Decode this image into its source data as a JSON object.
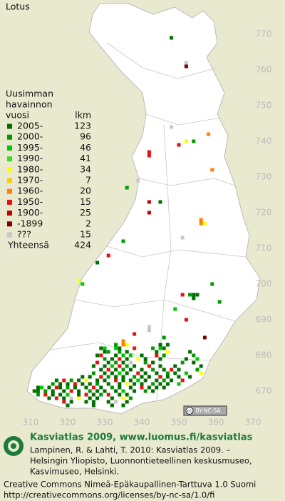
{
  "title": "Lotus",
  "legend": {
    "heading": [
      "Uusimman",
      "havainnon",
      "vuosi"
    ],
    "count_header": "lkm",
    "items": [
      {
        "label": "2005-",
        "count": 123,
        "color": "#006e00"
      },
      {
        "label": "2000-",
        "count": 96,
        "color": "#009a00"
      },
      {
        "label": "1995-",
        "count": 46,
        "color": "#00c800"
      },
      {
        "label": "1990-",
        "count": 41,
        "color": "#33e21a"
      },
      {
        "label": "1980-",
        "count": 34,
        "color": "#ffff00"
      },
      {
        "label": "1970-",
        "count": 7,
        "color": "#ffcc00"
      },
      {
        "label": "1960-",
        "count": 20,
        "color": "#ff8000"
      },
      {
        "label": "1950-",
        "count": 15,
        "color": "#e81010"
      },
      {
        "label": "1900-",
        "count": 25,
        "color": "#c00000"
      },
      {
        "label": "-1899",
        "count": 2,
        "color": "#800000"
      },
      {
        "label": "???",
        "count": 15,
        "color": "#c8c8c8"
      }
    ],
    "total_label": "Yhteensä",
    "total": 424
  },
  "axes": {
    "x_labels": [
      310,
      320,
      330,
      340,
      350,
      360,
      370
    ],
    "y_labels": [
      770,
      760,
      750,
      740,
      730,
      720,
      710,
      700,
      690,
      680,
      670
    ]
  },
  "squares": [
    [
      348,
      769,
      0
    ],
    [
      352,
      762,
      10
    ],
    [
      352,
      761,
      9
    ],
    [
      348,
      744,
      10
    ],
    [
      358,
      742,
      6
    ],
    [
      342,
      737,
      7
    ],
    [
      342,
      736,
      7
    ],
    [
      350,
      739,
      7
    ],
    [
      352,
      740,
      4
    ],
    [
      354,
      740,
      1
    ],
    [
      359,
      732,
      6
    ],
    [
      345,
      723,
      0
    ],
    [
      342,
      723,
      8
    ],
    [
      342,
      720,
      8
    ],
    [
      339,
      729,
      10
    ],
    [
      336,
      727,
      1
    ],
    [
      356,
      718,
      6
    ],
    [
      356,
      717,
      6
    ],
    [
      357,
      717,
      4
    ],
    [
      351,
      713,
      10
    ],
    [
      335,
      712,
      1
    ],
    [
      331,
      708,
      7
    ],
    [
      328,
      706,
      0
    ],
    [
      323,
      701,
      4
    ],
    [
      324,
      700,
      2
    ],
    [
      351,
      697,
      7
    ],
    [
      353,
      697,
      1
    ],
    [
      354,
      697,
      0
    ],
    [
      355,
      697,
      0
    ],
    [
      354,
      696,
      0
    ],
    [
      361,
      695,
      1
    ],
    [
      359,
      700,
      1
    ],
    [
      349,
      693,
      2
    ],
    [
      352,
      690,
      7
    ],
    [
      342,
      688,
      10
    ],
    [
      342,
      687,
      10
    ],
    [
      346,
      685,
      1
    ],
    [
      357,
      685,
      9
    ],
    [
      338,
      686,
      7
    ],
    [
      335,
      684,
      6
    ],
    [
      333,
      683,
      1
    ],
    [
      335,
      683,
      6
    ],
    [
      336,
      683,
      4
    ],
    [
      345,
      683,
      0
    ],
    [
      347,
      683,
      0
    ],
    [
      329,
      682,
      0
    ],
    [
      330,
      682,
      2
    ],
    [
      333,
      682,
      2
    ],
    [
      334,
      682,
      0
    ],
    [
      338,
      682,
      7
    ],
    [
      343,
      682,
      1
    ],
    [
      345,
      682,
      2
    ],
    [
      346,
      682,
      0
    ],
    [
      330,
      681,
      0
    ],
    [
      331,
      681,
      1
    ],
    [
      334,
      681,
      1
    ],
    [
      336,
      681,
      0
    ],
    [
      344,
      681,
      0
    ],
    [
      347,
      681,
      4
    ],
    [
      353,
      681,
      0
    ],
    [
      328,
      680,
      0
    ],
    [
      329,
      680,
      7
    ],
    [
      333,
      680,
      0
    ],
    [
      335,
      680,
      2
    ],
    [
      337,
      680,
      2
    ],
    [
      340,
      680,
      0
    ],
    [
      344,
      680,
      7
    ],
    [
      346,
      680,
      1
    ],
    [
      354,
      680,
      1
    ],
    [
      330,
      679,
      1
    ],
    [
      332,
      679,
      0
    ],
    [
      334,
      679,
      7
    ],
    [
      336,
      679,
      0
    ],
    [
      339,
      679,
      4
    ],
    [
      341,
      679,
      0
    ],
    [
      345,
      679,
      0
    ],
    [
      352,
      679,
      0
    ],
    [
      355,
      679,
      2
    ],
    [
      328,
      678,
      7
    ],
    [
      331,
      678,
      0
    ],
    [
      333,
      678,
      1
    ],
    [
      335,
      678,
      0
    ],
    [
      337,
      678,
      10
    ],
    [
      341,
      678,
      1
    ],
    [
      343,
      678,
      0
    ],
    [
      351,
      678,
      1
    ],
    [
      354,
      678,
      0
    ],
    [
      327,
      677,
      0
    ],
    [
      330,
      677,
      0
    ],
    [
      332,
      677,
      2
    ],
    [
      334,
      677,
      7
    ],
    [
      336,
      677,
      1
    ],
    [
      338,
      677,
      0
    ],
    [
      342,
      677,
      7
    ],
    [
      345,
      677,
      0
    ],
    [
      349,
      677,
      0
    ],
    [
      356,
      677,
      0
    ],
    [
      329,
      676,
      0
    ],
    [
      331,
      676,
      7
    ],
    [
      333,
      676,
      0
    ],
    [
      335,
      676,
      1
    ],
    [
      337,
      676,
      0
    ],
    [
      340,
      676,
      0
    ],
    [
      343,
      676,
      1
    ],
    [
      346,
      676,
      0
    ],
    [
      348,
      676,
      7
    ],
    [
      350,
      676,
      0
    ],
    [
      355,
      676,
      1
    ],
    [
      327,
      675,
      1
    ],
    [
      330,
      675,
      0
    ],
    [
      332,
      675,
      0
    ],
    [
      334,
      675,
      2
    ],
    [
      336,
      675,
      0
    ],
    [
      339,
      675,
      7
    ],
    [
      341,
      675,
      0
    ],
    [
      344,
      675,
      0
    ],
    [
      347,
      675,
      1
    ],
    [
      349,
      675,
      0
    ],
    [
      352,
      675,
      2
    ],
    [
      356,
      675,
      4
    ],
    [
      324,
      674,
      0
    ],
    [
      326,
      674,
      0
    ],
    [
      329,
      674,
      7
    ],
    [
      331,
      674,
      1
    ],
    [
      333,
      674,
      0
    ],
    [
      335,
      674,
      0
    ],
    [
      338,
      674,
      1
    ],
    [
      340,
      674,
      0
    ],
    [
      342,
      674,
      0
    ],
    [
      345,
      674,
      7
    ],
    [
      347,
      674,
      0
    ],
    [
      350,
      674,
      0
    ],
    [
      353,
      674,
      0
    ],
    [
      317,
      673,
      0
    ],
    [
      319,
      673,
      7
    ],
    [
      321,
      673,
      1
    ],
    [
      323,
      673,
      0
    ],
    [
      325,
      673,
      4
    ],
    [
      328,
      673,
      0
    ],
    [
      330,
      673,
      0
    ],
    [
      333,
      673,
      7
    ],
    [
      335,
      673,
      0
    ],
    [
      337,
      673,
      0
    ],
    [
      339,
      673,
      2
    ],
    [
      341,
      673,
      0
    ],
    [
      344,
      673,
      0
    ],
    [
      346,
      673,
      1
    ],
    [
      348,
      673,
      0
    ],
    [
      351,
      673,
      7
    ],
    [
      316,
      672,
      1
    ],
    [
      318,
      672,
      0
    ],
    [
      320,
      672,
      0
    ],
    [
      322,
      672,
      7
    ],
    [
      324,
      672,
      0
    ],
    [
      326,
      672,
      0
    ],
    [
      328,
      672,
      1
    ],
    [
      331,
      672,
      0
    ],
    [
      334,
      672,
      0
    ],
    [
      336,
      672,
      4
    ],
    [
      338,
      672,
      0
    ],
    [
      340,
      672,
      0
    ],
    [
      343,
      672,
      1
    ],
    [
      345,
      672,
      0
    ],
    [
      347,
      672,
      0
    ],
    [
      350,
      672,
      2
    ],
    [
      312,
      671,
      0
    ],
    [
      313,
      671,
      2
    ],
    [
      315,
      671,
      0
    ],
    [
      317,
      671,
      7
    ],
    [
      318,
      671,
      0
    ],
    [
      320,
      671,
      1
    ],
    [
      322,
      671,
      0
    ],
    [
      325,
      671,
      0
    ],
    [
      327,
      671,
      7
    ],
    [
      329,
      671,
      0
    ],
    [
      332,
      671,
      1
    ],
    [
      334,
      671,
      0
    ],
    [
      337,
      671,
      0
    ],
    [
      340,
      671,
      7
    ],
    [
      342,
      671,
      0
    ],
    [
      344,
      671,
      0
    ],
    [
      346,
      671,
      0
    ],
    [
      311,
      670,
      0
    ],
    [
      312,
      670,
      0
    ],
    [
      314,
      670,
      1
    ],
    [
      316,
      670,
      0
    ],
    [
      319,
      670,
      0
    ],
    [
      321,
      670,
      7
    ],
    [
      323,
      670,
      0
    ],
    [
      326,
      670,
      1
    ],
    [
      328,
      670,
      0
    ],
    [
      330,
      670,
      0
    ],
    [
      333,
      670,
      0
    ],
    [
      335,
      670,
      2
    ],
    [
      338,
      670,
      0
    ],
    [
      341,
      670,
      1
    ],
    [
      343,
      670,
      0
    ],
    [
      312,
      669,
      1
    ],
    [
      314,
      669,
      7
    ],
    [
      316,
      669,
      0
    ],
    [
      318,
      669,
      0
    ],
    [
      320,
      669,
      2
    ],
    [
      323,
      669,
      0
    ],
    [
      325,
      669,
      7
    ],
    [
      327,
      669,
      0
    ],
    [
      329,
      669,
      1
    ],
    [
      331,
      669,
      7
    ],
    [
      334,
      669,
      0
    ],
    [
      336,
      669,
      0
    ],
    [
      315,
      668,
      0
    ],
    [
      317,
      668,
      7
    ],
    [
      319,
      668,
      0
    ],
    [
      321,
      668,
      10
    ],
    [
      323,
      668,
      4
    ],
    [
      326,
      668,
      0
    ],
    [
      328,
      668,
      0
    ],
    [
      332,
      668,
      0
    ],
    [
      335,
      668,
      4
    ],
    [
      337,
      668,
      1
    ],
    [
      319,
      667,
      7
    ],
    [
      321,
      667,
      0
    ],
    [
      325,
      667,
      0
    ],
    [
      327,
      667,
      0
    ],
    [
      331,
      667,
      0
    ],
    [
      333,
      667,
      10
    ],
    [
      336,
      667,
      0
    ],
    [
      320,
      666,
      0
    ],
    [
      327,
      666,
      0
    ],
    [
      332,
      666,
      0
    ],
    [
      335,
      666,
      0
    ]
  ],
  "badge": {
    "icon": "cc",
    "text": "BY-NC-SA"
  },
  "footer": {
    "heading": "Kasviatlas 2009, www.luomus.fi/kasviatlas",
    "citation": [
      "Lampinen, R. & Lahti, T. 2010: Kasviatlas 2009. –",
      "Helsingin Yliopisto, Luonnontieteellinen keskusmuseo,",
      "Kasvimuseo, Helsinki."
    ],
    "license": [
      "Creative Commons Nimeä-Epäkaupallinen-Tarttuva 1.0 Suomi",
      "http://creativecommons.org/licenses/by-nc-sa/1.0/fi"
    ]
  }
}
